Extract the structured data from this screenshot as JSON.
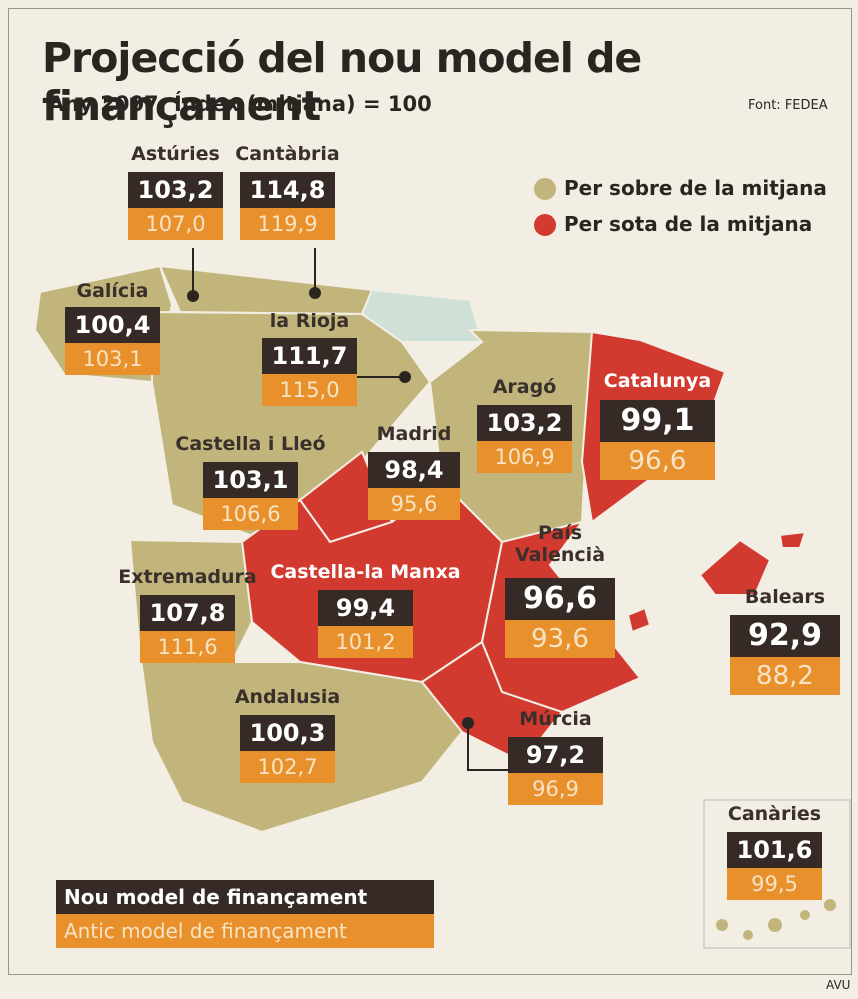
{
  "header": {
    "title": "Projecció del nou model de finançament",
    "subtitle": "Any 2007. Índex (mitjana) = 100",
    "source": "Font: FEDEA"
  },
  "legend": {
    "above": "Per sobre de la mitjana",
    "below": "Per sota de la mitjana"
  },
  "key": {
    "new": "Nou model de finançament",
    "old": "Antic model de finançament"
  },
  "regions": [
    {
      "name": "Astúries",
      "new": "103,2",
      "old": "107,0"
    },
    {
      "name": "Cantàbria",
      "new": "114,8",
      "old": "119,9"
    },
    {
      "name": "Galícia",
      "new": "100,4",
      "old": "103,1"
    },
    {
      "name": "la Rioja",
      "new": "111,7",
      "old": "115,0"
    },
    {
      "name": "Aragó",
      "new": "103,2",
      "old": "106,9"
    },
    {
      "name": "Catalunya",
      "new": "99,1",
      "old": "96,6"
    },
    {
      "name": "Madrid",
      "new": "98,4",
      "old": "95,6"
    },
    {
      "name": "Castella i Lleó",
      "new": "103,1",
      "old": "106,6"
    },
    {
      "name": "Extremadura",
      "new": "107,8",
      "old": "111,6"
    },
    {
      "name": "Castella-la Manxa",
      "new": "99,4",
      "old": "101,2"
    },
    {
      "name": "País Valencià",
      "new": "96,6",
      "old": "93,6"
    },
    {
      "name": "Balears",
      "new": "92,9",
      "old": "88,2"
    },
    {
      "name": "Andalusia",
      "new": "100,3",
      "old": "102,7"
    },
    {
      "name": "Múrcia",
      "new": "97,2",
      "old": "96,9"
    },
    {
      "name": "Canàries",
      "new": "101,6",
      "old": "99,5"
    }
  ],
  "footer": "AVU"
}
